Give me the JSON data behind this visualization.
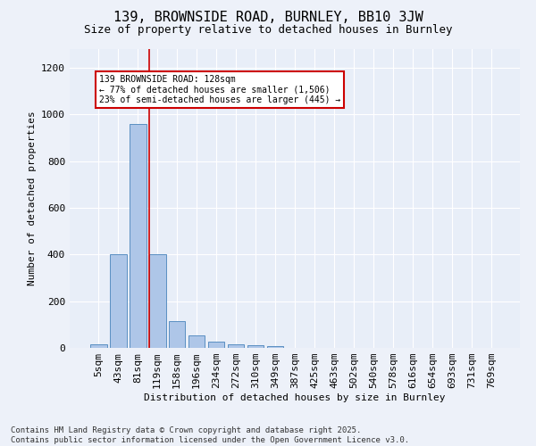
{
  "title": "139, BROWNSIDE ROAD, BURNLEY, BB10 3JW",
  "subtitle": "Size of property relative to detached houses in Burnley",
  "xlabel": "Distribution of detached houses by size in Burnley",
  "ylabel": "Number of detached properties",
  "bar_labels": [
    "5sqm",
    "43sqm",
    "81sqm",
    "119sqm",
    "158sqm",
    "196sqm",
    "234sqm",
    "272sqm",
    "310sqm",
    "349sqm",
    "387sqm",
    "425sqm",
    "463sqm",
    "502sqm",
    "540sqm",
    "578sqm",
    "616sqm",
    "654sqm",
    "693sqm",
    "731sqm",
    "769sqm"
  ],
  "bar_values": [
    15,
    400,
    960,
    400,
    115,
    55,
    25,
    15,
    10,
    8,
    0,
    0,
    0,
    0,
    0,
    0,
    0,
    0,
    0,
    0,
    0
  ],
  "bar_color": "#aec6e8",
  "bar_edge_color": "#5a8fc2",
  "background_color": "#e8eef8",
  "grid_color": "#ffffff",
  "property_line_color": "#cc0000",
  "annotation_text": "139 BROWNSIDE ROAD: 128sqm\n← 77% of detached houses are smaller (1,506)\n23% of semi-detached houses are larger (445) →",
  "annotation_box_color": "#cc0000",
  "ylim": [
    0,
    1280
  ],
  "yticks": [
    0,
    200,
    400,
    600,
    800,
    1000,
    1200
  ],
  "footer_text": "Contains HM Land Registry data © Crown copyright and database right 2025.\nContains public sector information licensed under the Open Government Licence v3.0.",
  "title_fontsize": 11,
  "subtitle_fontsize": 9,
  "axis_fontsize": 8,
  "tick_fontsize": 8,
  "footer_fontsize": 6.5,
  "fig_width": 6.0,
  "fig_height": 5.0,
  "fig_bg_color": "#edf1f9"
}
